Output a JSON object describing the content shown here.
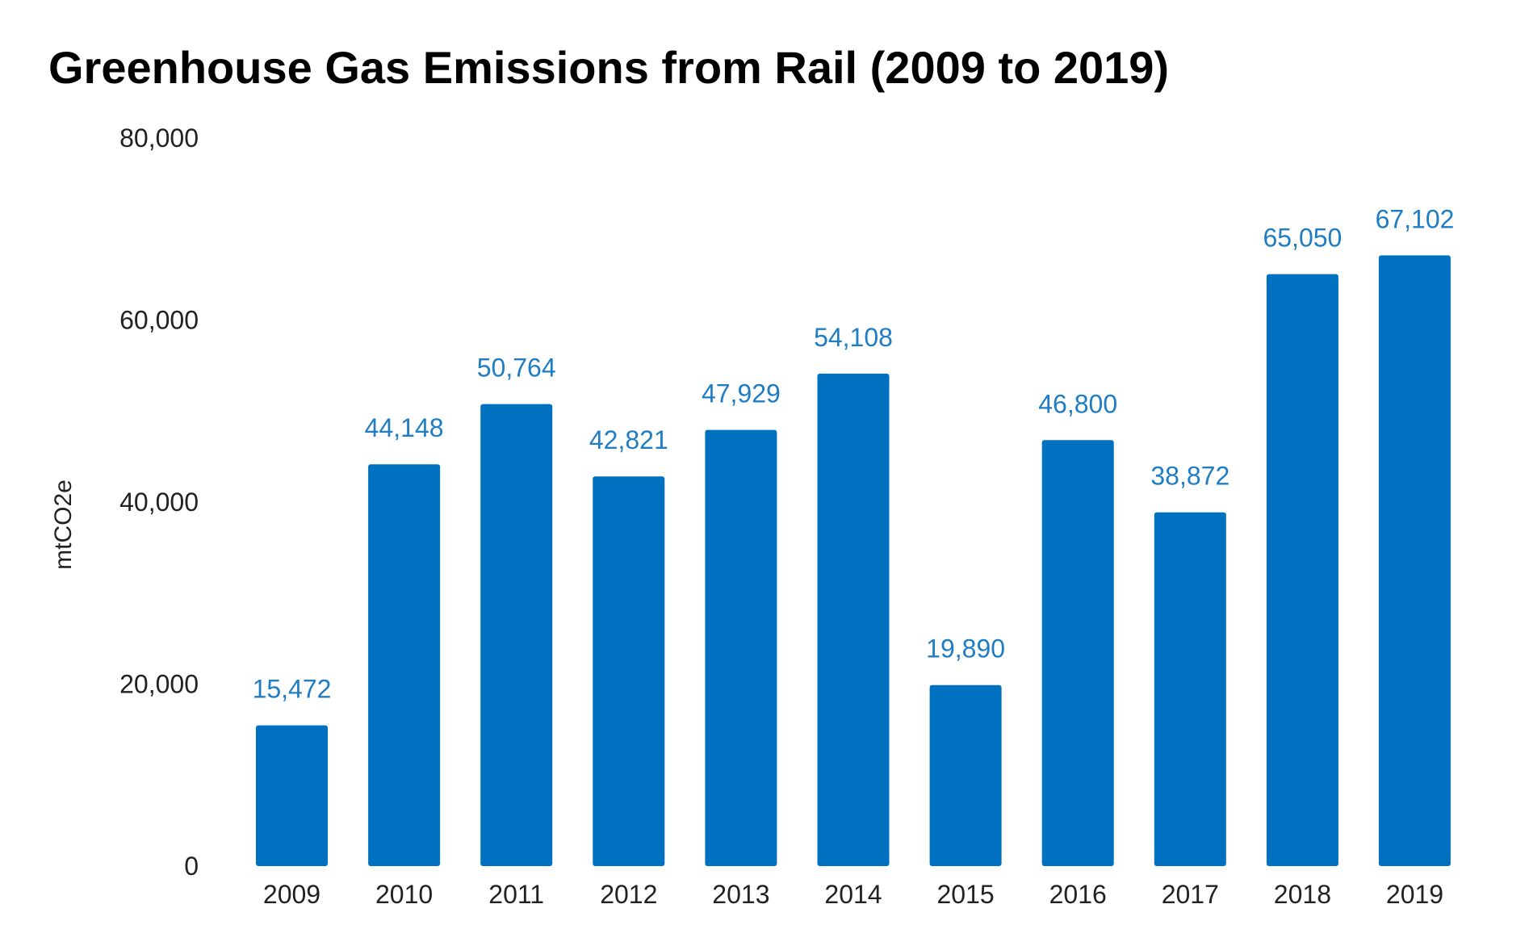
{
  "chart_data": {
    "type": "bar",
    "title": "Greenhouse Gas Emissions from Rail (2009 to 2019)",
    "xlabel": "",
    "ylabel": "mtCO2e",
    "categories": [
      "2009",
      "2010",
      "2011",
      "2012",
      "2013",
      "2014",
      "2015",
      "2016",
      "2017",
      "2018",
      "2019"
    ],
    "values": [
      15472,
      44148,
      50764,
      42821,
      47929,
      54108,
      19890,
      46800,
      38872,
      65050,
      67102
    ],
    "value_labels": [
      "15,472",
      "44,148",
      "50,764",
      "42,821",
      "47,929",
      "54,108",
      "19,890",
      "46,800",
      "38,872",
      "65,050",
      "67,102"
    ],
    "ylim": [
      0,
      80000
    ],
    "yticks": [
      0,
      20000,
      40000,
      60000,
      80000
    ],
    "ytick_labels": [
      "0",
      "20,000",
      "40,000",
      "60,000",
      "80,000"
    ],
    "grid": false,
    "legend": "none",
    "bar_color": "#0070C0",
    "label_color": "#1F7DC4"
  }
}
